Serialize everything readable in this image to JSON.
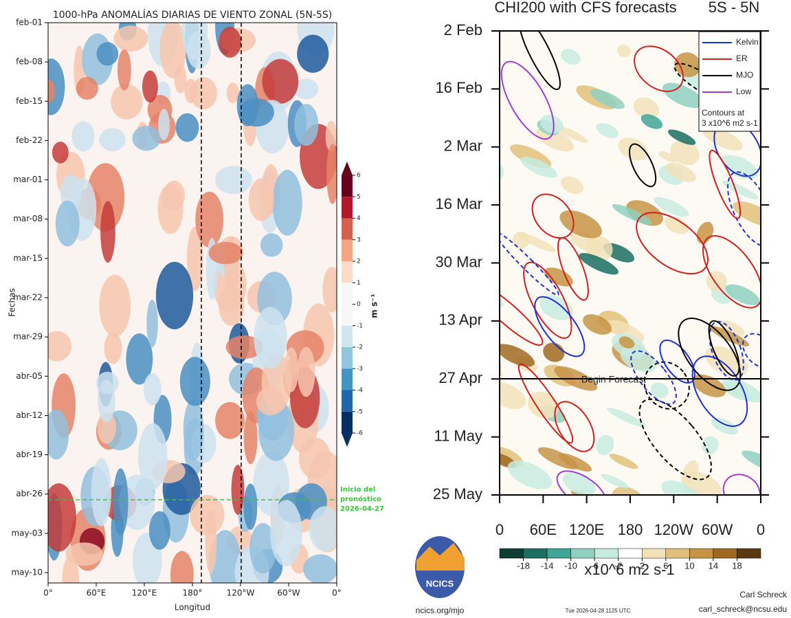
{
  "left": {
    "title": "1000-hPa ANOMALÍAS DIARIAS DE VIENTO ZONAL (5N-5S)",
    "ylabel": "Fechas",
    "xlabel": "Longitud",
    "yticks": [
      "feb-01",
      "feb-08",
      "feb-15",
      "feb-22",
      "mar-01",
      "mar-08",
      "mar-15",
      "mar-22",
      "mar-29",
      "abr-05",
      "abr-12",
      "abr-19",
      "abr-26",
      "may-03",
      "may-10"
    ],
    "xticks": [
      "0°",
      "60°E",
      "120°E",
      "180°",
      "120°W",
      "60°W",
      "0°"
    ],
    "colorbar": {
      "label": "m s⁻¹",
      "ticks": [
        6,
        5,
        4,
        3,
        2,
        1,
        0,
        -1,
        -2,
        -3,
        -4,
        -5,
        -6
      ]
    },
    "forecast_note": [
      "Inicio del",
      "pronóstico",
      "2026-04-27"
    ]
  },
  "right": {
    "title": "CHI200 with CFS forecasts",
    "region": "5S - 5N",
    "yticks": [
      "2 Feb",
      "16 Feb",
      "2 Mar",
      "16 Mar",
      "30 Mar",
      "13 Apr",
      "27 Apr",
      "11 May",
      "25 May"
    ],
    "xticks": [
      "0",
      "60E",
      "120E",
      "180",
      "120W",
      "60W",
      "0"
    ],
    "legend": [
      {
        "name": "Kelvin",
        "color": "#1f2fd0"
      },
      {
        "name": "ER",
        "color": "#d01f1f"
      },
      {
        "name": "MJO",
        "color": "#000000"
      },
      {
        "name": "Low",
        "color": "#a23ad6"
      }
    ],
    "contour_note": [
      "Contours at",
      "3 x10^6 m2 s-1"
    ],
    "forecast_label": "Begin Forecast",
    "colorbar": {
      "ticks": [
        -18,
        -14,
        -10,
        -6,
        -2,
        2,
        6,
        10,
        14,
        18
      ],
      "label": "x10^6 m2 s-1"
    },
    "logo": "NCICS",
    "url": "ncics.org/mjo",
    "timestamp": "Tue 2026-04-28 1125 UTC",
    "author": "Carl Schreck",
    "email": "carl_schreck@ncsu.edu"
  }
}
